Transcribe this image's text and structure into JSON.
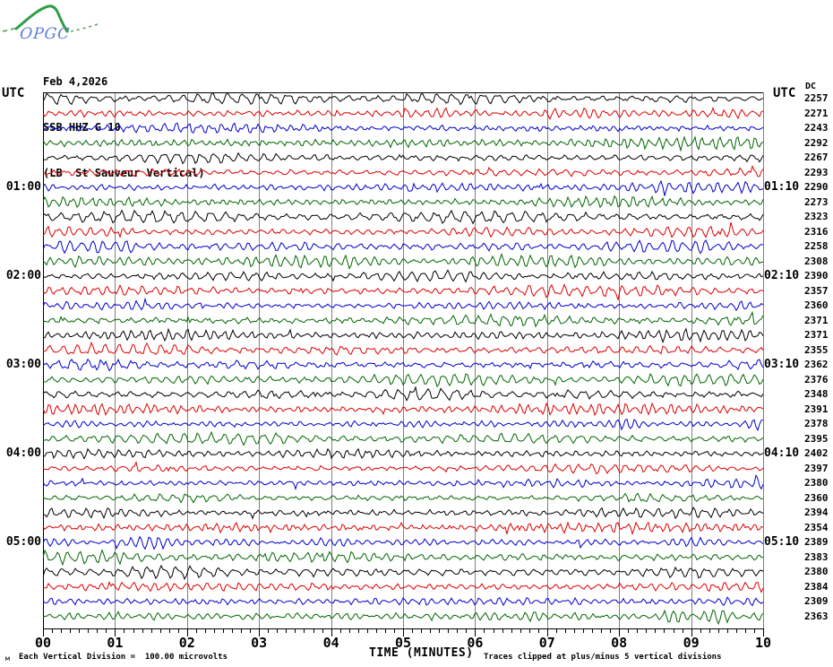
{
  "logo": {
    "text": "OPGC",
    "curve_color": "#2f9e44",
    "text_color": "#5b7bd5"
  },
  "header": {
    "date": "Feb 4,2026",
    "station": "SSB HHZ G 10",
    "location": "(LB  St Sauveur Vertical)"
  },
  "labels": {
    "utc_left": "UTC",
    "utc_right": "UTC",
    "dc": "DC",
    "x_title": "TIME (MINUTES)"
  },
  "x_axis": {
    "ticks": [
      "00",
      "01",
      "02",
      "03",
      "04",
      "05",
      "06",
      "07",
      "08",
      "09",
      "10"
    ],
    "minor_subdivisions": 8
  },
  "left_times": [
    {
      "row": 6,
      "label": "01:00"
    },
    {
      "row": 12,
      "label": "02:00"
    },
    {
      "row": 18,
      "label": "03:00"
    },
    {
      "row": 24,
      "label": "04:00"
    },
    {
      "row": 30,
      "label": "05:00"
    }
  ],
  "right_times": [
    {
      "row": 6,
      "label": "01:10"
    },
    {
      "row": 12,
      "label": "02:10"
    },
    {
      "row": 18,
      "label": "03:10"
    },
    {
      "row": 24,
      "label": "04:10"
    },
    {
      "row": 30,
      "label": "05:10"
    }
  ],
  "dc_values": [
    2257,
    2271,
    2243,
    2292,
    2267,
    2293,
    2290,
    2273,
    2323,
    2316,
    2258,
    2308,
    2390,
    2357,
    2360,
    2371,
    2371,
    2355,
    2362,
    2376,
    2348,
    2391,
    2378,
    2395,
    2402,
    2397,
    2380,
    2360,
    2394,
    2354,
    2389,
    2383,
    2380,
    2384,
    2309,
    2363
  ],
  "chart": {
    "rows": 36,
    "minutes": 10,
    "colors": [
      "#000000",
      "#dd0000",
      "#0000cc",
      "#006600"
    ],
    "grid_color": "#808080",
    "axis_color": "#000000"
  },
  "footer": {
    "glyph": "м",
    "division_note": "Each Vertical Division =  100.00 microvolts",
    "clip_note": "Traces clipped at plus/minus 5 vertical divisions"
  },
  "chart_data": {
    "type": "line",
    "title": "SSB HHZ G 10 helicorder, Feb 4,2026 (LB St Sauveur Vertical)",
    "xlabel": "TIME (MINUTES)",
    "x_range": [
      0,
      10
    ],
    "traces_per_hour": 6,
    "trace_duration_minutes": 10,
    "trace_start_times_utc": [
      "00:00",
      "00:10",
      "00:20",
      "00:30",
      "00:40",
      "00:50",
      "01:00",
      "01:10",
      "01:20",
      "01:30",
      "01:40",
      "01:50",
      "02:00",
      "02:10",
      "02:20",
      "02:30",
      "02:40",
      "02:50",
      "03:00",
      "03:10",
      "03:20",
      "03:30",
      "03:40",
      "03:50",
      "04:00",
      "04:10",
      "04:20",
      "04:30",
      "04:40",
      "04:50",
      "05:00",
      "05:10",
      "05:20",
      "05:30",
      "05:40",
      "05:50"
    ],
    "dc_offsets": [
      2257,
      2271,
      2243,
      2292,
      2267,
      2293,
      2290,
      2273,
      2323,
      2316,
      2258,
      2308,
      2390,
      2357,
      2360,
      2371,
      2371,
      2355,
      2362,
      2376,
      2348,
      2391,
      2378,
      2395,
      2402,
      2397,
      2380,
      2360,
      2394,
      2354,
      2389,
      2383,
      2380,
      2384,
      2309,
      2363
    ],
    "vertical_division_microvolts": 100.0,
    "clip_limit_divisions": 5,
    "trace_color_cycle": [
      "black",
      "red",
      "blue",
      "green"
    ],
    "legend": "none",
    "grid": "vertical lines at each minute"
  }
}
